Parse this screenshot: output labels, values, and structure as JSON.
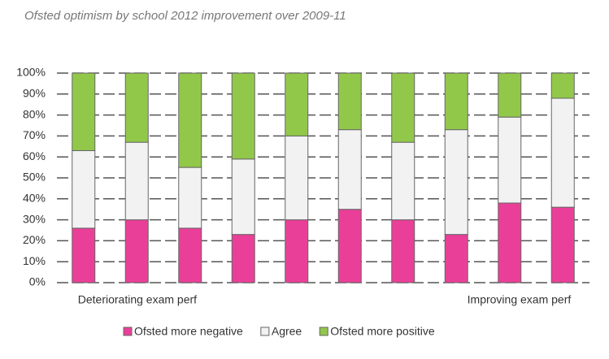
{
  "chart_data": {
    "type": "stacked_bar",
    "title": "Ofsted optimism by school 2012 improvement over 2009-11",
    "categories": [
      "Deteriorating exam perf",
      null,
      null,
      null,
      null,
      null,
      null,
      null,
      null,
      "Improving exam perf"
    ],
    "series": [
      {
        "name": "Ofsted more negative",
        "color": "#ea3f98",
        "values": [
          26,
          30,
          26,
          23,
          30,
          35,
          30,
          23,
          38,
          36
        ]
      },
      {
        "name": "Agree",
        "color": "#f2f2f2",
        "values": [
          37,
          37,
          29,
          36,
          40,
          38,
          37,
          50,
          41,
          52
        ]
      },
      {
        "name": "Ofsted more positive",
        "color": "#92c84a",
        "values": [
          37,
          33,
          45,
          41,
          30,
          27,
          33,
          27,
          21,
          12
        ]
      }
    ],
    "ylim": [
      0,
      100
    ],
    "yticks": [
      {
        "value": 0,
        "label": "0%"
      },
      {
        "value": 10,
        "label": "10%"
      },
      {
        "value": 20,
        "label": "20%"
      },
      {
        "value": 30,
        "label": "30%"
      },
      {
        "value": 40,
        "label": "40%"
      },
      {
        "value": 50,
        "label": "50%"
      },
      {
        "value": 60,
        "label": "60%"
      },
      {
        "value": 70,
        "label": "70%"
      },
      {
        "value": 80,
        "label": "80%"
      },
      {
        "value": 90,
        "label": "90%"
      },
      {
        "value": 100,
        "label": "100%"
      }
    ],
    "grid": true,
    "legend": "bottom"
  }
}
